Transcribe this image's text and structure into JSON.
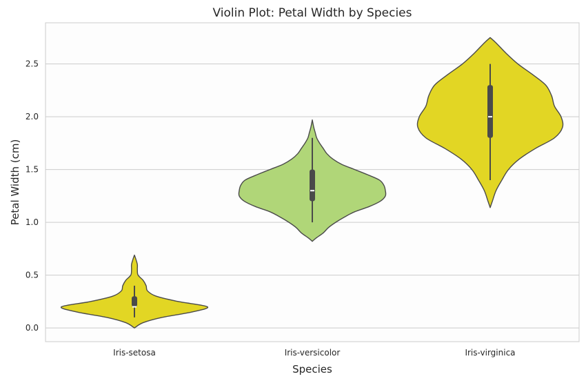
{
  "chart_data": {
    "type": "violin",
    "title": "Violin Plot: Petal Width by Species",
    "xlabel": "Species",
    "ylabel": "Petal Width (cm)",
    "categories": [
      "Iris-setosa",
      "Iris-versicolor",
      "Iris-virginica"
    ],
    "ylim": [
      -0.13,
      2.89
    ],
    "yticks": [
      0.0,
      0.5,
      1.0,
      1.5,
      2.0,
      2.5
    ],
    "ytick_labels": [
      "0.0",
      "0.5",
      "1.0",
      "1.5",
      "2.0",
      "2.5"
    ],
    "grid": "horizontal",
    "colors": {
      "Iris-setosa": "#e2d624",
      "Iris-versicolor": "#b0d678",
      "Iris-virginica": "#e2d624",
      "outline": "#4a4a4a",
      "box": "#4a4a4a",
      "median": "#ffffff",
      "grid": "#cccccc",
      "plot_background": "#fdfdfd"
    },
    "series": [
      {
        "category": "Iris-setosa",
        "min": 0.1,
        "q1": 0.2,
        "median": 0.2,
        "q3": 0.3,
        "max": 0.4,
        "kde_range": [
          0.0,
          0.69
        ],
        "density": [
          [
            0.0,
            0.0
          ],
          [
            0.05,
            0.12
          ],
          [
            0.1,
            0.38
          ],
          [
            0.15,
            0.78
          ],
          [
            0.2,
            1.0
          ],
          [
            0.25,
            0.6
          ],
          [
            0.3,
            0.3
          ],
          [
            0.35,
            0.18
          ],
          [
            0.4,
            0.16
          ],
          [
            0.45,
            0.12
          ],
          [
            0.5,
            0.05
          ],
          [
            0.55,
            0.04
          ],
          [
            0.6,
            0.04
          ],
          [
            0.65,
            0.02
          ],
          [
            0.69,
            0.0
          ]
        ]
      },
      {
        "category": "Iris-versicolor",
        "min": 1.0,
        "q1": 1.2,
        "median": 1.3,
        "q3": 1.5,
        "max": 1.8,
        "kde_range": [
          0.82,
          1.97
        ],
        "density": [
          [
            0.82,
            0.0
          ],
          [
            0.85,
            0.05
          ],
          [
            0.9,
            0.15
          ],
          [
            0.95,
            0.22
          ],
          [
            1.0,
            0.32
          ],
          [
            1.05,
            0.44
          ],
          [
            1.1,
            0.58
          ],
          [
            1.15,
            0.78
          ],
          [
            1.2,
            0.93
          ],
          [
            1.25,
            1.0
          ],
          [
            1.3,
            1.0
          ],
          [
            1.35,
            0.98
          ],
          [
            1.4,
            0.92
          ],
          [
            1.45,
            0.76
          ],
          [
            1.5,
            0.58
          ],
          [
            1.55,
            0.4
          ],
          [
            1.6,
            0.28
          ],
          [
            1.65,
            0.2
          ],
          [
            1.7,
            0.15
          ],
          [
            1.75,
            0.1
          ],
          [
            1.8,
            0.06
          ],
          [
            1.85,
            0.04
          ],
          [
            1.9,
            0.02
          ],
          [
            1.97,
            0.0
          ]
        ]
      },
      {
        "category": "Iris-virginica",
        "min": 1.4,
        "q1": 1.8,
        "median": 2.0,
        "q3": 2.3,
        "max": 2.5,
        "kde_range": [
          1.14,
          2.75
        ],
        "density": [
          [
            1.14,
            0.0
          ],
          [
            1.2,
            0.03
          ],
          [
            1.3,
            0.08
          ],
          [
            1.4,
            0.16
          ],
          [
            1.5,
            0.25
          ],
          [
            1.6,
            0.4
          ],
          [
            1.7,
            0.62
          ],
          [
            1.8,
            0.88
          ],
          [
            1.9,
            0.99
          ],
          [
            2.0,
            0.97
          ],
          [
            2.1,
            0.88
          ],
          [
            2.2,
            0.84
          ],
          [
            2.3,
            0.76
          ],
          [
            2.4,
            0.58
          ],
          [
            2.5,
            0.38
          ],
          [
            2.6,
            0.22
          ],
          [
            2.7,
            0.08
          ],
          [
            2.75,
            0.0
          ]
        ]
      }
    ]
  }
}
